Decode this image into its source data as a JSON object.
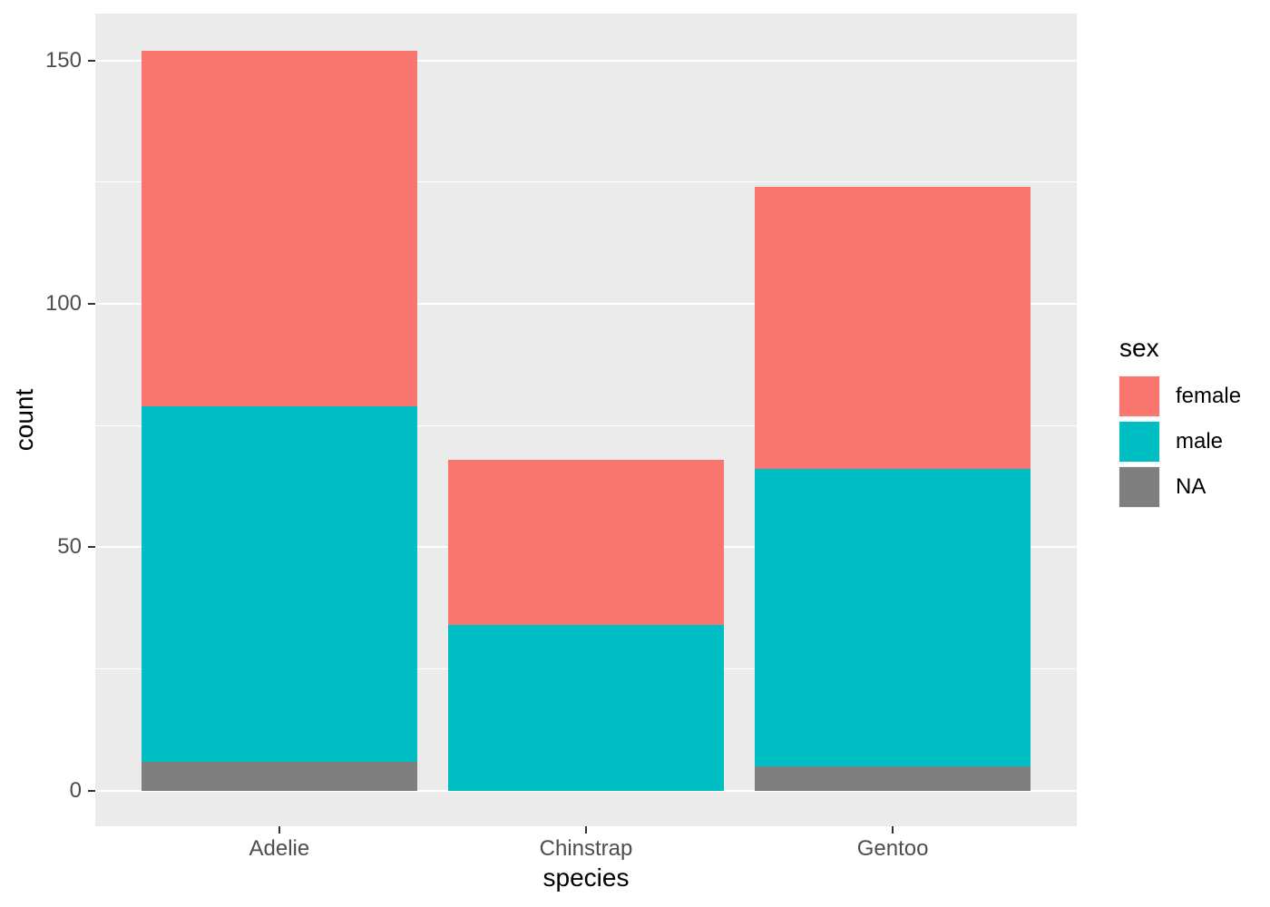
{
  "figure": {
    "background": "#FFFFFF",
    "panel_background": "#EBEBEB",
    "gridline_color": "#FFFFFF",
    "tick_mark_color": "#333333",
    "tick_label_color": "#4D4D4D",
    "axis_title_color": "#000000"
  },
  "chart_data": {
    "type": "bar",
    "stacked": true,
    "title": "",
    "xlabel": "species",
    "ylabel": "count",
    "categories": [
      "Adelie",
      "Chinstrap",
      "Gentoo"
    ],
    "series": [
      {
        "name": "female",
        "color": "#F8766D",
        "values": [
          73,
          34,
          58
        ]
      },
      {
        "name": "male",
        "color": "#00BFC4",
        "values": [
          73,
          34,
          61
        ]
      },
      {
        "name": "NA",
        "color": "#7F7F7F",
        "values": [
          6,
          0,
          5
        ]
      }
    ],
    "stack_order_bottom_to_top": [
      "NA",
      "male",
      "female"
    ],
    "totals": [
      152,
      68,
      124
    ],
    "y_axis": {
      "major_ticks": [
        0,
        50,
        100,
        150
      ],
      "minor_gridlines": [
        25,
        75,
        125
      ],
      "range_expanded": [
        -7.3,
        159.6
      ],
      "grid": true
    },
    "legend": {
      "title": "sex",
      "position": "right",
      "entries": [
        {
          "label": "female",
          "color": "#F8766D"
        },
        {
          "label": "male",
          "color": "#00BFC4"
        },
        {
          "label": "NA",
          "color": "#7F7F7F"
        }
      ]
    }
  }
}
